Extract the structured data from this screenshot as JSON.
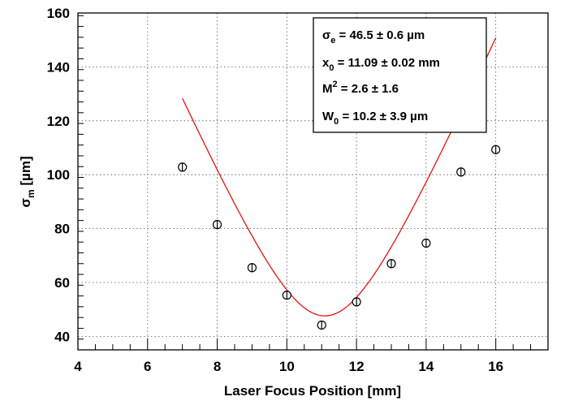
{
  "chart_data": {
    "type": "scatter",
    "xlabel": "Laser Focus Position [mm]",
    "ylabel": {
      "symbol": "σ",
      "subscript": "m",
      "unit": " [µm]"
    },
    "xlim": [
      4,
      17.5
    ],
    "ylim": [
      35,
      160
    ],
    "x_ticks": [
      4,
      6,
      8,
      10,
      12,
      14,
      16
    ],
    "y_ticks": [
      40,
      60,
      80,
      100,
      120,
      140,
      160
    ],
    "grid": true,
    "marker_color": "#000000",
    "fit_color": "#dd2222",
    "points": [
      {
        "x": 7,
        "y": 102.8,
        "err": 1.0
      },
      {
        "x": 8,
        "y": 81.5,
        "err": 1.0
      },
      {
        "x": 9,
        "y": 65.5,
        "err": 1.0
      },
      {
        "x": 10,
        "y": 55.3,
        "err": 1.0
      },
      {
        "x": 11,
        "y": 44.2,
        "err": 1.0
      },
      {
        "x": 12,
        "y": 52.8,
        "err": 1.0
      },
      {
        "x": 13,
        "y": 67.0,
        "err": 1.0
      },
      {
        "x": 14,
        "y": 74.6,
        "err": 1.0
      },
      {
        "x": 15,
        "y": 101.0,
        "err": 1.0
      },
      {
        "x": 16,
        "y": 109.3,
        "err": 1.0
      }
    ],
    "fit": {
      "name": "",
      "x_range": [
        7,
        16
      ],
      "sigma_e": 46.5,
      "x0": 11.09,
      "W0": 10.2
    },
    "stats_box": {
      "lines": [
        {
          "sym": "σ",
          "sub": "e",
          "sup": "",
          "text": " = 46.5 ± 0.6 µm"
        },
        {
          "sym": "x",
          "sub": "0",
          "sup": "",
          "text": " = 11.09 ± 0.02 mm"
        },
        {
          "sym": "M",
          "sub": "",
          "sup": "2",
          "text": " =  2.6 ± 1.6"
        },
        {
          "sym": "W",
          "sub": "0",
          "sup": "",
          "text": " = 10.2 ± 3.9 µm"
        }
      ]
    }
  }
}
